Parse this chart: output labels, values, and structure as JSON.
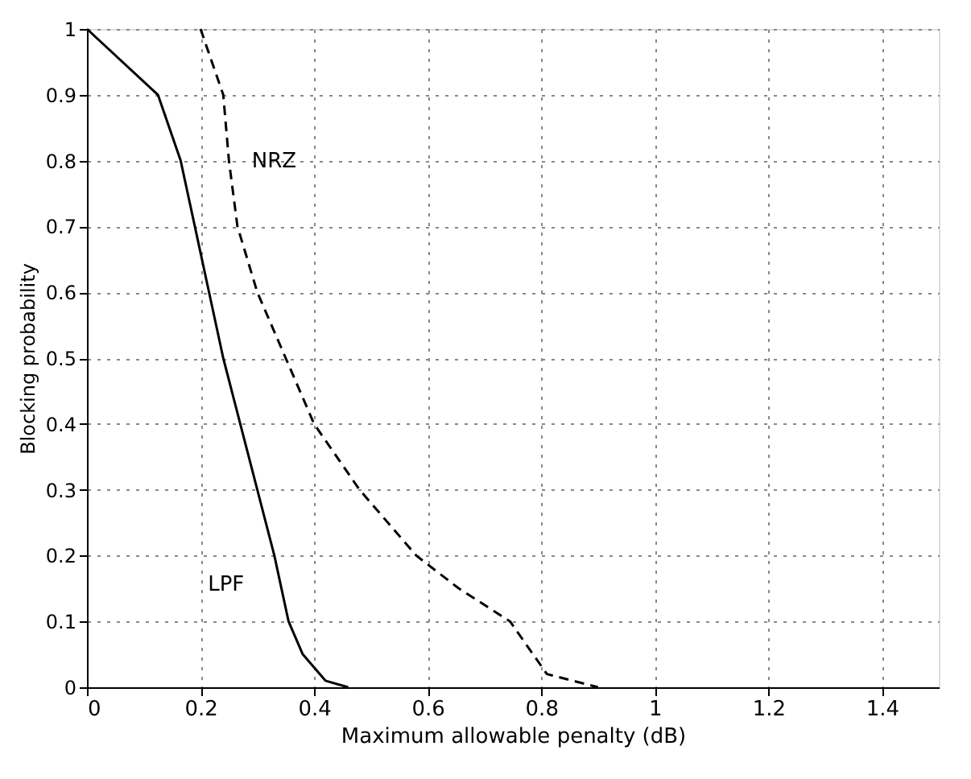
{
  "chart_data": {
    "type": "line",
    "xlabel": "Maximum allowable penalty (dB)",
    "ylabel": "Blocking probability",
    "xlim": [
      0,
      1.5
    ],
    "ylim": [
      0,
      1
    ],
    "xticks": [
      0,
      0.2,
      0.4,
      0.6,
      0.8,
      1,
      1.2,
      1.4
    ],
    "yticks": [
      0,
      0.1,
      0.2,
      0.3,
      0.4,
      0.5,
      0.6,
      0.7,
      0.8,
      0.9,
      1
    ],
    "grid": true,
    "series": [
      {
        "color": "#000000",
        "line_style": "dashed",
        "x": [
          0.2,
          0.24,
          0.25,
          0.265,
          0.3,
          0.35,
          0.4,
          0.48,
          0.58,
          0.655,
          0.745,
          0.81,
          0.9
        ],
        "values": [
          1,
          0.9,
          0.8,
          0.7,
          0.6,
          0.5,
          0.4,
          0.3,
          0.2,
          0.15,
          0.1,
          0.02,
          0
        ]
      },
      {
        "color": "#000000",
        "line_style": "solid",
        "x": [
          0,
          0.125,
          0.165,
          0.19,
          0.215,
          0.24,
          0.27,
          0.3,
          0.33,
          0.355,
          0.38,
          0.42,
          0.46
        ],
        "values": [
          1,
          0.9,
          0.8,
          0.7,
          0.6,
          0.5,
          0.4,
          0.3,
          0.2,
          0.1,
          0.05,
          0.01,
          0
        ]
      }
    ],
    "annotations": [
      "NRZ",
      "LPF"
    ]
  }
}
